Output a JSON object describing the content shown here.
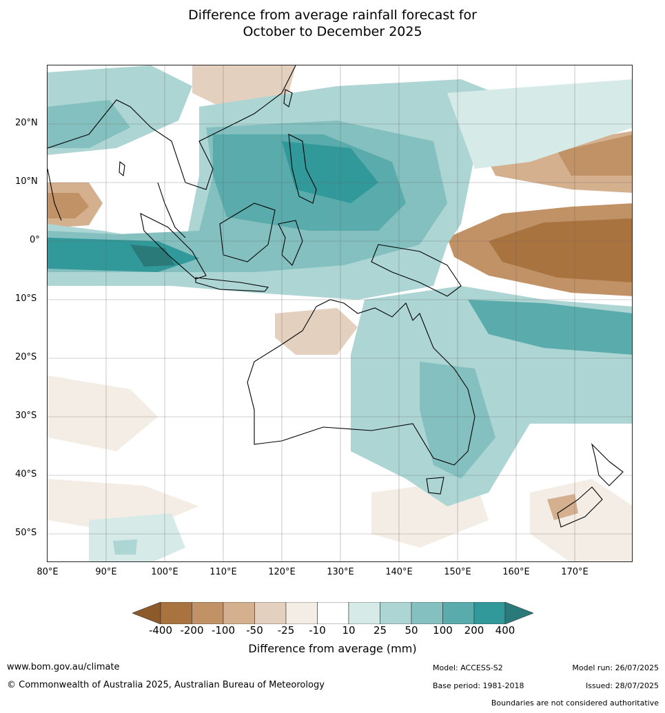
{
  "title_line1": "Difference from average rainfall forecast for",
  "title_line2": "October to December 2025",
  "lat_labels": [
    "20°N",
    "10°N",
    "0°",
    "10°S",
    "20°S",
    "30°S",
    "40°S",
    "50°S"
  ],
  "lon_labels": [
    "80°E",
    "90°E",
    "100°E",
    "110°E",
    "120°E",
    "130°E",
    "140°E",
    "150°E",
    "160°E",
    "170°E"
  ],
  "legend": {
    "title": "Difference from average (mm)",
    "ticks": [
      "-400",
      "-200",
      "-100",
      "-50",
      "-25",
      "-10",
      "10",
      "25",
      "50",
      "100",
      "200",
      "400"
    ],
    "colors": [
      "#8c5a2b",
      "#a8733e",
      "#c19266",
      "#d4b08f",
      "#e4d0bf",
      "#f3ede6",
      "#ffffff",
      "#d6eae8",
      "#acd5d4",
      "#83c0bf",
      "#5aabab",
      "#319999",
      "#2a7a7a"
    ]
  },
  "footer": {
    "website": "www.bom.gov.au/climate",
    "copyright": "© Commonwealth of Australia 2025, Australian Bureau of Meteorology",
    "model": "Model: ACCESS-S2",
    "base_period": "Base period: 1981-2018",
    "model_run": "Model run: 26/07/2025",
    "issued": "Issued: 28/07/2025",
    "disclaimer": "Boundaries are not considered authoritative"
  }
}
